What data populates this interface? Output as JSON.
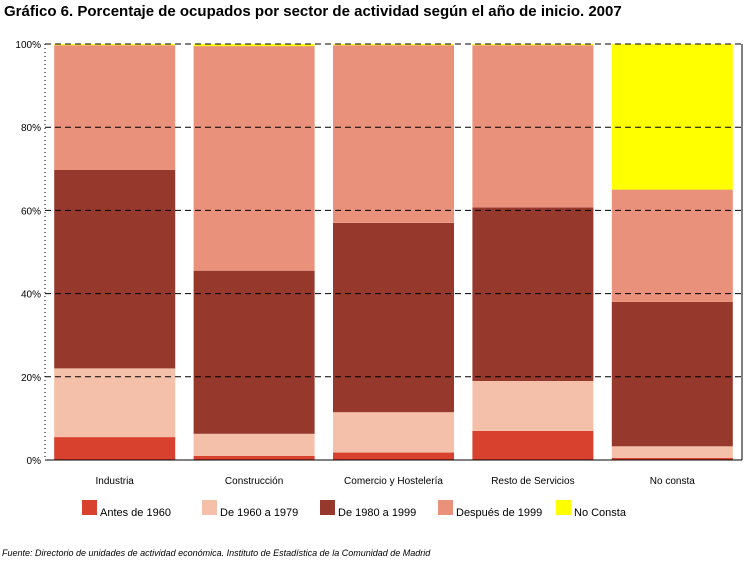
{
  "title": "Gráfico 6. Porcentaje de ocupados por sector de actividad según el año de inicio. 2007",
  "source": "Fuente: Directorio de unidades de actividad económica. Instituto de Estadística de la Comunidad de Madrid",
  "chart_data": {
    "type": "bar",
    "stacked": true,
    "percent": true,
    "categories": [
      "Industria",
      "Construcción",
      "Comercio y Hostelería",
      "Resto de Servicios",
      "No consta"
    ],
    "series": [
      {
        "name": "Antes de 1960",
        "color": "#d9412f",
        "values": [
          5.5,
          1.0,
          1.8,
          7.0,
          0.5
        ]
      },
      {
        "name": "De 1960 a 1979",
        "color": "#f4c0aa",
        "values": [
          16.5,
          5.3,
          9.7,
          12.0,
          2.8
        ]
      },
      {
        "name": "De 1980 a 1999",
        "color": "#97382c",
        "values": [
          47.7,
          39.2,
          45.5,
          41.7,
          34.7
        ]
      },
      {
        "name": "Después de 1999",
        "color": "#e9917a",
        "values": [
          30.0,
          54.0,
          42.7,
          39.0,
          27.0
        ]
      },
      {
        "name": "No Consta",
        "color": "#ffff00",
        "values": [
          0.3,
          0.5,
          0.3,
          0.3,
          35.0
        ]
      }
    ],
    "y_ticks": [
      "0%",
      "20%",
      "40%",
      "60%",
      "80%",
      "100%"
    ],
    "ylim": [
      0,
      100
    ],
    "grid": "horizontal dashed",
    "legend_position": "bottom"
  }
}
